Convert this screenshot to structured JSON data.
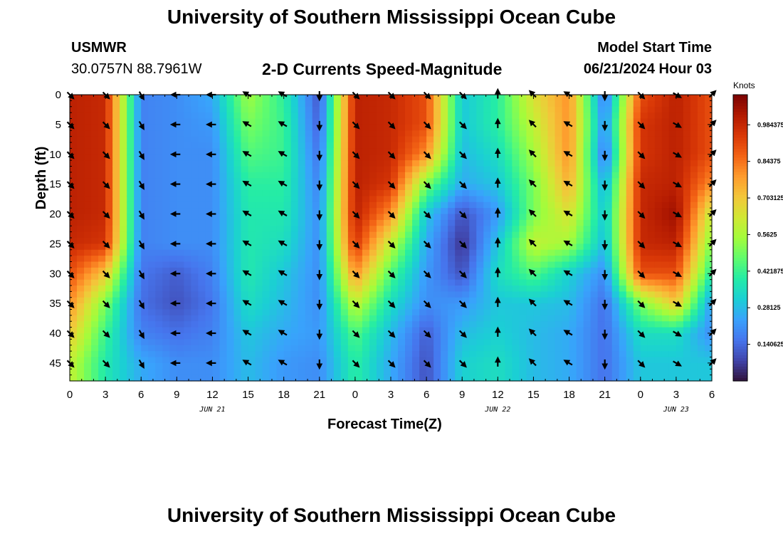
{
  "header": {
    "title": "University of Southern Mississippi Ocean Cube",
    "station_id": "USMWR",
    "station_coords": "30.0757N  88.7961W",
    "subtitle": "2-D Currents Speed-Magnitude",
    "model_label": "Model Start Time",
    "model_time": "06/21/2024 Hour 03"
  },
  "footer": {
    "title": "University of Southern Mississippi Ocean Cube"
  },
  "chart_data": {
    "type": "heatmap",
    "title": "2-D Currents Speed-Magnitude",
    "xlabel": "Forecast Time(Z)",
    "ylabel": "Depth (ft)",
    "x_unit": "hours since 06/21 00Z",
    "x_range": [
      0,
      54
    ],
    "y_range": [
      0,
      48
    ],
    "x_tick_values": [
      0,
      3,
      6,
      9,
      12,
      15,
      18,
      21,
      24,
      27,
      30,
      33,
      36,
      39,
      42,
      45,
      48,
      51,
      54
    ],
    "x_tick_labels": [
      "0",
      "3",
      "6",
      "9",
      "12",
      "15",
      "18",
      "21",
      "0",
      "3",
      "6",
      "9",
      "12",
      "15",
      "18",
      "21",
      "0",
      "3",
      "6"
    ],
    "y_tick_values": [
      0,
      5,
      10,
      15,
      20,
      25,
      30,
      35,
      40,
      45
    ],
    "y_tick_labels": [
      "0",
      "5",
      "10",
      "15",
      "20",
      "25",
      "30",
      "35",
      "40",
      "45"
    ],
    "date_labels": [
      {
        "x": 12,
        "label": "JUN 21"
      },
      {
        "x": 36,
        "label": "JUN 22"
      },
      {
        "x": 51,
        "label": "JUN 23"
      }
    ],
    "colorbar": {
      "label": "Knots",
      "range": [
        0.0,
        1.1
      ],
      "tick_values": [
        0.140625,
        0.28125,
        0.421875,
        0.5625,
        0.703125,
        0.84375,
        0.984375
      ],
      "tick_labels": [
        "0.140625",
        "0.28125",
        "0.421875",
        "0.5625",
        "0.703125",
        "0.84375",
        "0.984375"
      ]
    },
    "speed_knots_by_hour": {
      "hours": [
        0,
        3,
        6,
        9,
        12,
        15,
        18,
        21,
        24,
        27,
        30,
        33,
        36,
        39,
        42,
        45,
        48,
        51,
        54
      ],
      "depths": [
        0,
        5,
        10,
        15,
        20,
        25,
        30,
        35,
        40,
        45
      ],
      "values": [
        [
          1.0,
          1.0,
          1.0,
          1.0,
          1.0,
          0.98,
          0.9,
          0.8,
          0.7,
          0.6
        ],
        [
          0.98,
          0.98,
          0.98,
          0.98,
          0.98,
          0.95,
          0.7,
          0.5,
          0.42,
          0.38
        ],
        [
          0.18,
          0.18,
          0.18,
          0.18,
          0.18,
          0.18,
          0.16,
          0.15,
          0.18,
          0.25
        ],
        [
          0.2,
          0.2,
          0.2,
          0.2,
          0.2,
          0.2,
          0.12,
          0.1,
          0.15,
          0.2
        ],
        [
          0.25,
          0.22,
          0.2,
          0.2,
          0.2,
          0.2,
          0.18,
          0.16,
          0.18,
          0.2
        ],
        [
          0.55,
          0.5,
          0.45,
          0.4,
          0.38,
          0.38,
          0.38,
          0.35,
          0.3,
          0.28
        ],
        [
          0.4,
          0.42,
          0.42,
          0.4,
          0.38,
          0.35,
          0.3,
          0.28,
          0.25,
          0.22
        ],
        [
          0.1,
          0.12,
          0.15,
          0.18,
          0.2,
          0.2,
          0.2,
          0.2,
          0.22,
          0.2
        ],
        [
          1.0,
          1.0,
          1.0,
          1.0,
          1.0,
          0.95,
          0.8,
          0.6,
          0.45,
          0.4
        ],
        [
          0.98,
          0.98,
          0.98,
          0.95,
          0.8,
          0.6,
          0.45,
          0.35,
          0.28,
          0.25
        ],
        [
          0.9,
          0.9,
          0.8,
          0.5,
          0.3,
          0.25,
          0.22,
          0.2,
          0.12,
          0.1
        ],
        [
          0.3,
          0.3,
          0.28,
          0.25,
          0.1,
          0.05,
          0.1,
          0.22,
          0.28,
          0.32
        ],
        [
          0.4,
          0.4,
          0.35,
          0.3,
          0.22,
          0.3,
          0.35,
          0.3,
          0.32,
          0.35
        ],
        [
          0.65,
          0.6,
          0.55,
          0.5,
          0.5,
          0.6,
          0.45,
          0.3,
          0.28,
          0.28
        ],
        [
          0.8,
          0.8,
          0.8,
          0.75,
          0.65,
          0.55,
          0.32,
          0.28,
          0.25,
          0.25
        ],
        [
          0.15,
          0.2,
          0.15,
          0.25,
          0.3,
          0.28,
          0.2,
          0.15,
          0.15,
          0.15
        ],
        [
          0.9,
          0.95,
          0.95,
          0.98,
          0.98,
          0.98,
          0.9,
          0.5,
          0.35,
          0.3
        ],
        [
          1.0,
          1.0,
          1.0,
          1.0,
          1.05,
          1.0,
          0.9,
          0.7,
          0.35,
          0.3
        ],
        [
          0.9,
          0.9,
          0.9,
          0.8,
          0.6,
          0.5,
          0.38,
          0.22,
          0.2,
          0.3
        ]
      ]
    },
    "vector_direction_deg_by_hour": {
      "note": "compass direction arrows point toward, read by hour",
      "hours": [
        0,
        3,
        6,
        9,
        12,
        15,
        18,
        21,
        24,
        27,
        30,
        33,
        36,
        39,
        42,
        45,
        48,
        51,
        54
      ],
      "values": [
        135,
        135,
        150,
        270,
        270,
        300,
        300,
        180,
        135,
        135,
        135,
        135,
        0,
        315,
        300,
        180,
        135,
        120,
        45
      ]
    }
  },
  "colors": {
    "background": "#ffffff",
    "vector": "#000000",
    "colormap": [
      "#30123b",
      "#4145ab",
      "#4675ed",
      "#39a2fc",
      "#1bcfd4",
      "#24eca6",
      "#61fc6c",
      "#a4fc3b",
      "#d1e834",
      "#f3c63a",
      "#fe9b2d",
      "#f36315",
      "#d93807",
      "#b11901",
      "#7a0403"
    ]
  }
}
